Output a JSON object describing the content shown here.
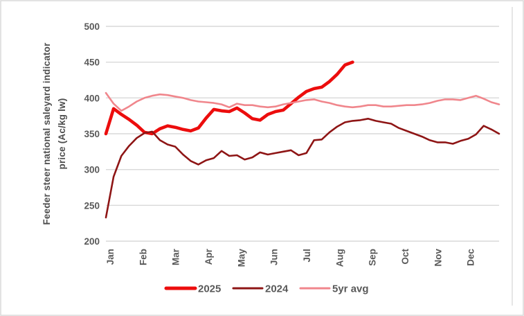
{
  "chart": {
    "y_axis_title_line1": "Feeder steer national saleyard indicator",
    "y_axis_title_line2": "price (Ac/kg lw)"
  },
  "colors": {
    "background": "#ffffff",
    "border": "#d9d9d9",
    "gridline": "#d9d9d9",
    "axis_text": "#595959",
    "series_2025": "#ec0d0d",
    "series_2024": "#8e1515",
    "series_5yr_avg": "#f0868c"
  },
  "chart_data": {
    "type": "line",
    "title": "",
    "xlabel": "",
    "ylabel": "Feeder steer national saleyard indicator price (Ac/kg lw)",
    "ylim": [
      200,
      500
    ],
    "y_ticks": [
      500,
      450,
      400,
      350,
      300,
      250,
      200
    ],
    "x_categories_months": [
      "Jan",
      "Feb",
      "Mar",
      "Apr",
      "May",
      "Jun",
      "Jul",
      "Aug",
      "Sep",
      "Oct",
      "Nov",
      "Dec"
    ],
    "x_points_per_year": 52,
    "x_unit": "week",
    "grid": "horizontal",
    "legend_position": "bottom",
    "series": [
      {
        "name": "2025",
        "color": "#ec0d0d",
        "values": [
          350,
          385,
          377,
          370,
          362,
          352,
          350,
          357,
          361,
          359,
          356,
          354,
          358,
          372,
          384,
          382,
          381,
          386,
          379,
          371,
          369,
          377,
          381,
          383,
          392,
          401,
          409,
          413,
          415,
          423,
          433,
          446,
          450
        ]
      },
      {
        "name": "2024",
        "color": "#8e1515",
        "values": [
          233,
          290,
          319,
          333,
          344,
          351,
          353,
          341,
          335,
          332,
          321,
          312,
          307,
          313,
          316,
          326,
          319,
          320,
          314,
          317,
          324,
          321,
          323,
          325,
          327,
          320,
          323,
          341,
          342,
          352,
          360,
          366,
          368,
          369,
          371,
          368,
          366,
          364,
          358,
          354,
          350,
          346,
          341,
          338,
          338,
          336,
          340,
          343,
          349,
          361,
          356,
          350
        ]
      },
      {
        "name": "5yr avg",
        "color": "#f0868c",
        "values": [
          407,
          392,
          382,
          388,
          395,
          400,
          403,
          405,
          404,
          402,
          400,
          397,
          395,
          394,
          393,
          391,
          387,
          392,
          390,
          390,
          388,
          387,
          388,
          391,
          393,
          395,
          397,
          398,
          395,
          393,
          390,
          388,
          387,
          388,
          390,
          390,
          388,
          388,
          389,
          390,
          390,
          391,
          393,
          396,
          398,
          398,
          397,
          400,
          403,
          399,
          394,
          391
        ]
      }
    ]
  }
}
